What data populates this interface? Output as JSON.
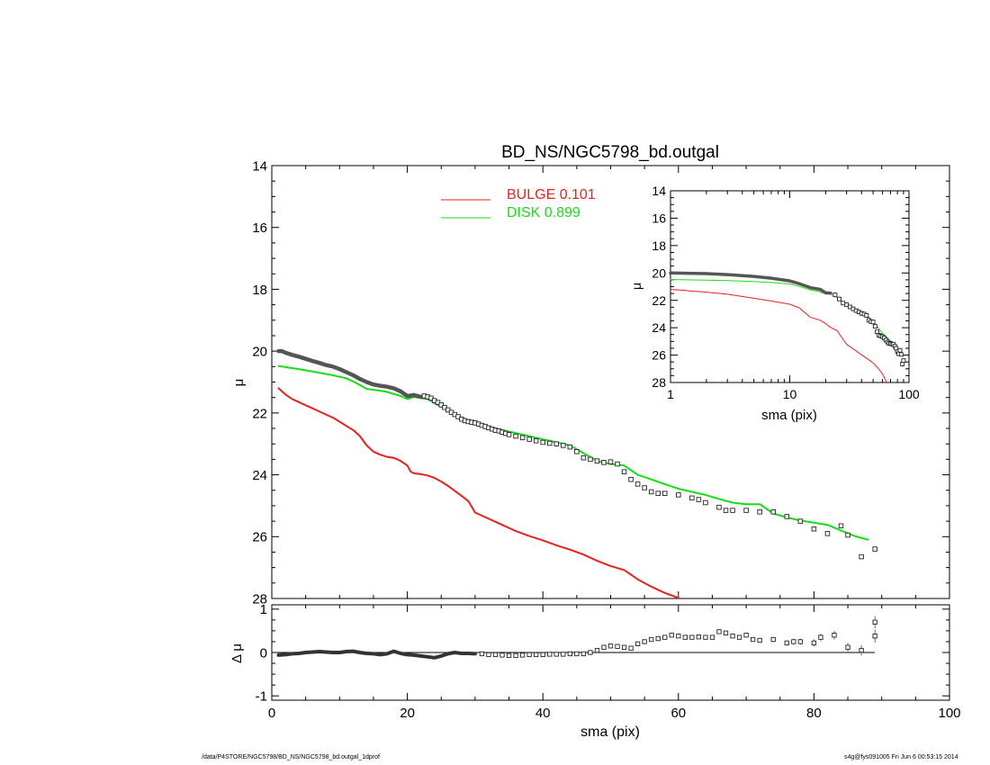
{
  "chart_data": [
    {
      "type": "scatter",
      "panel": "main",
      "title": "BD_NS/NGC5798_bd.outgal",
      "xlabel": "",
      "ylabel": "μ",
      "xlim": [
        0,
        100
      ],
      "ylim": [
        28,
        14
      ],
      "x_ticks": [
        0,
        20,
        40,
        60,
        80,
        100
      ],
      "y_ticks": [
        14,
        16,
        18,
        20,
        22,
        24,
        26,
        28
      ],
      "y_reversed": true,
      "legend_position": "top-center",
      "series": [
        {
          "name": "BULGE  0.101",
          "kind": "line",
          "color": "#e8211d",
          "x": [
            1,
            2,
            3,
            4,
            5,
            6,
            7,
            8,
            9,
            10,
            11,
            12,
            13,
            14,
            15,
            16,
            17,
            18,
            19,
            20,
            20.5,
            21,
            22,
            23,
            24,
            25,
            26,
            27,
            28,
            29,
            30,
            32,
            34,
            36,
            38,
            40,
            42,
            44,
            46,
            48,
            50,
            52,
            54,
            56,
            58,
            60
          ],
          "y": [
            21.2,
            21.4,
            21.55,
            21.65,
            21.75,
            21.85,
            21.95,
            22.05,
            22.15,
            22.28,
            22.42,
            22.55,
            22.75,
            23.05,
            23.25,
            23.35,
            23.42,
            23.45,
            23.55,
            23.7,
            23.9,
            23.95,
            23.98,
            24.02,
            24.1,
            24.22,
            24.36,
            24.52,
            24.68,
            24.85,
            25.22,
            25.42,
            25.62,
            25.82,
            25.98,
            26.12,
            26.28,
            26.42,
            26.58,
            26.78,
            26.95,
            27.08,
            27.38,
            27.62,
            27.82,
            27.98
          ]
        },
        {
          "name": "DISK  0.899",
          "kind": "line",
          "color": "#17dd17",
          "x": [
            1,
            3,
            5,
            7,
            9,
            11,
            12,
            13,
            14,
            15,
            16,
            17,
            18,
            19,
            20,
            21,
            22,
            23,
            24,
            25,
            26,
            27,
            28,
            30,
            32,
            34,
            36,
            38,
            40,
            42,
            44,
            46,
            48,
            50,
            52,
            54,
            56,
            58,
            60,
            62,
            64,
            66,
            68,
            70,
            72,
            74,
            76,
            78,
            80,
            82,
            84,
            86,
            88
          ],
          "y": [
            20.48,
            20.55,
            20.62,
            20.7,
            20.78,
            20.88,
            20.98,
            21.1,
            21.22,
            21.25,
            21.28,
            21.32,
            21.38,
            21.45,
            21.55,
            21.48,
            21.52,
            21.55,
            21.68,
            21.8,
            21.9,
            22.05,
            22.15,
            22.35,
            22.45,
            22.55,
            22.65,
            22.75,
            22.85,
            22.95,
            23.05,
            23.3,
            23.55,
            23.65,
            23.7,
            24.0,
            24.15,
            24.3,
            24.45,
            24.55,
            24.65,
            24.78,
            24.9,
            24.95,
            24.95,
            25.25,
            25.38,
            25.48,
            25.55,
            25.62,
            25.8,
            25.98,
            26.1
          ]
        },
        {
          "name": "",
          "kind": "thick_line",
          "color": "#555555",
          "x": [
            1,
            1.5,
            2,
            3,
            4,
            5,
            6,
            7,
            8,
            9,
            10,
            11,
            12,
            13,
            14,
            15,
            16,
            17,
            18,
            19,
            20,
            21,
            22
          ],
          "y": [
            20.0,
            20.0,
            20.05,
            20.12,
            20.18,
            20.25,
            20.32,
            20.38,
            20.45,
            20.5,
            20.58,
            20.68,
            20.78,
            20.9,
            21.0,
            21.08,
            21.12,
            21.15,
            21.2,
            21.3,
            21.45,
            21.42,
            21.48
          ]
        },
        {
          "name": "",
          "kind": "squares",
          "color": "#222222",
          "x": [
            22.5,
            23,
            23.5,
            24,
            24.5,
            25,
            25.5,
            26,
            26.5,
            27,
            27.5,
            28,
            28.5,
            29,
            29.5,
            30,
            30.5,
            31,
            31.5,
            32,
            32.5,
            33,
            33.5,
            34,
            34.5,
            35,
            36,
            37,
            38,
            39,
            40,
            41,
            42,
            43,
            44,
            45,
            46,
            47,
            48,
            49,
            50,
            51,
            52,
            53,
            54,
            55,
            56,
            57,
            58,
            60,
            62,
            63,
            64,
            66,
            67,
            68,
            70,
            72,
            74,
            76,
            78,
            80,
            82,
            84,
            85,
            87,
            89
          ],
          "y": [
            21.45,
            21.48,
            21.52,
            21.6,
            21.66,
            21.74,
            21.82,
            21.9,
            21.98,
            22.05,
            22.12,
            22.2,
            22.25,
            22.28,
            22.3,
            22.32,
            22.36,
            22.4,
            22.44,
            22.48,
            22.52,
            22.56,
            22.58,
            22.62,
            22.66,
            22.7,
            22.75,
            22.8,
            22.85,
            22.9,
            22.95,
            22.98,
            23.0,
            23.05,
            23.1,
            23.25,
            23.45,
            23.5,
            23.55,
            23.6,
            23.58,
            23.65,
            23.9,
            24.15,
            24.3,
            24.42,
            24.55,
            24.6,
            24.6,
            24.65,
            24.75,
            24.8,
            24.9,
            25.05,
            25.15,
            25.15,
            25.15,
            25.2,
            25.2,
            25.35,
            25.5,
            25.75,
            25.9,
            25.65,
            25.95,
            26.65,
            26.4
          ]
        }
      ]
    },
    {
      "type": "scatter",
      "panel": "residual",
      "xlabel": "sma (pix)",
      "ylabel": "Δ μ",
      "xlim": [
        0,
        100
      ],
      "ylim": [
        -1.1,
        1.1
      ],
      "x_ticks": [
        0,
        20,
        40,
        60,
        80,
        100
      ],
      "y_ticks": [
        1,
        0,
        -1
      ],
      "zero_line": {
        "x": [
          1,
          89
        ],
        "y": 0
      },
      "series": [
        {
          "name": "",
          "kind": "thick_line",
          "color": "#333333",
          "x": [
            1,
            2,
            3,
            4,
            5,
            6,
            7,
            8,
            9,
            10,
            11,
            12,
            13,
            14,
            15,
            16,
            17,
            18,
            19,
            20,
            21,
            22,
            23,
            24,
            25,
            26,
            27,
            28,
            29,
            30
          ],
          "y": [
            -0.06,
            -0.05,
            -0.03,
            -0.02,
            0.0,
            0.01,
            0.02,
            0.01,
            0.0,
            0.0,
            0.02,
            0.03,
            0.0,
            -0.02,
            -0.03,
            -0.05,
            -0.03,
            0.03,
            -0.02,
            -0.05,
            -0.06,
            -0.08,
            -0.1,
            -0.12,
            -0.08,
            -0.03,
            0.0,
            -0.02,
            -0.02,
            -0.03
          ]
        },
        {
          "name": "",
          "kind": "squares_with_errors",
          "color": "#222222",
          "x": [
            31,
            32,
            33,
            34,
            35,
            36,
            37,
            38,
            39,
            40,
            41,
            42,
            43,
            44,
            45,
            46,
            47,
            48,
            49,
            50,
            51,
            52,
            53,
            54,
            55,
            56,
            57,
            58,
            59,
            60,
            61,
            62,
            63,
            64,
            65,
            66,
            67,
            68,
            69,
            70,
            71,
            72,
            74,
            76,
            77,
            78,
            80,
            81,
            83,
            85,
            87,
            89
          ],
          "y": [
            -0.03,
            -0.05,
            -0.05,
            -0.06,
            -0.07,
            -0.07,
            -0.06,
            -0.05,
            -0.05,
            -0.05,
            -0.04,
            -0.04,
            -0.04,
            -0.03,
            -0.03,
            -0.03,
            0.0,
            0.05,
            0.12,
            0.15,
            0.14,
            0.12,
            0.1,
            0.2,
            0.25,
            0.3,
            0.32,
            0.35,
            0.4,
            0.38,
            0.35,
            0.35,
            0.36,
            0.35,
            0.35,
            0.48,
            0.45,
            0.38,
            0.35,
            0.4,
            0.3,
            0.28,
            0.3,
            0.22,
            0.25,
            0.25,
            0.22,
            0.35,
            0.4,
            0.12,
            0.05,
            0.7
          ],
          "err": [
            0.02,
            0.02,
            0.02,
            0.02,
            0.02,
            0.02,
            0.02,
            0.02,
            0.02,
            0.02,
            0.02,
            0.02,
            0.02,
            0.02,
            0.02,
            0.02,
            0.03,
            0.03,
            0.03,
            0.03,
            0.03,
            0.03,
            0.03,
            0.03,
            0.04,
            0.04,
            0.04,
            0.04,
            0.04,
            0.04,
            0.04,
            0.04,
            0.04,
            0.04,
            0.04,
            0.05,
            0.05,
            0.05,
            0.05,
            0.05,
            0.05,
            0.05,
            0.06,
            0.06,
            0.07,
            0.07,
            0.08,
            0.09,
            0.1,
            0.1,
            0.12,
            0.14
          ]
        },
        {
          "name": "",
          "kind": "squares_with_errors",
          "color": "#222222",
          "x": [
            89
          ],
          "y": [
            0.38
          ],
          "err": [
            0.15
          ]
        }
      ]
    },
    {
      "type": "scatter",
      "panel": "inset",
      "xlabel": "sma (pix)",
      "ylabel": "μ",
      "x_scale": "log",
      "xlim": [
        1,
        100
      ],
      "ylim": [
        28,
        14
      ],
      "x_ticks": [
        1,
        10,
        100
      ],
      "y_ticks": [
        14,
        16,
        18,
        20,
        22,
        24,
        26,
        28
      ],
      "y_reversed": true,
      "series": [
        {
          "name": "",
          "kind": "line",
          "color": "#e8211d",
          "x": [
            1,
            2,
            3,
            5,
            7,
            10,
            12,
            15,
            18,
            20,
            22,
            25,
            30,
            35,
            40,
            45,
            50,
            55,
            60,
            65
          ],
          "y": [
            21.2,
            21.4,
            21.55,
            21.85,
            22.05,
            22.28,
            22.55,
            23.25,
            23.45,
            23.7,
            23.98,
            24.22,
            25.22,
            25.62,
            25.98,
            26.28,
            26.58,
            26.95,
            27.38,
            27.98
          ]
        },
        {
          "name": "",
          "kind": "line",
          "color": "#17dd17",
          "x": [
            1,
            2,
            3,
            5,
            7,
            10,
            12,
            15,
            18,
            20,
            22,
            25,
            30,
            35,
            40,
            45,
            50,
            55,
            60,
            65,
            70,
            75,
            80,
            85,
            90
          ],
          "y": [
            20.48,
            20.52,
            20.55,
            20.62,
            20.7,
            20.8,
            20.98,
            21.25,
            21.38,
            21.55,
            21.52,
            21.8,
            22.35,
            22.6,
            22.85,
            23.1,
            23.6,
            24.0,
            24.4,
            24.7,
            24.95,
            25.3,
            25.55,
            25.8,
            26.05
          ]
        },
        {
          "name": "",
          "kind": "thick_line",
          "color": "#555555",
          "x": [
            1,
            2,
            3,
            5,
            7,
            10,
            12,
            15,
            18,
            20,
            22
          ],
          "y": [
            20.0,
            20.05,
            20.12,
            20.25,
            20.38,
            20.58,
            20.78,
            21.08,
            21.2,
            21.45,
            21.48
          ]
        },
        {
          "name": "",
          "kind": "squares",
          "color": "#222222",
          "x": [
            24,
            26,
            28,
            30,
            32,
            34,
            36,
            38,
            40,
            42,
            44,
            46,
            48,
            50,
            52,
            54,
            56,
            58,
            60,
            62,
            64,
            66,
            68,
            70,
            72,
            74,
            76,
            78,
            80,
            82,
            84,
            86,
            88,
            90
          ],
          "y": [
            21.6,
            21.9,
            22.2,
            22.32,
            22.48,
            22.62,
            22.75,
            22.85,
            22.95,
            23.0,
            23.1,
            23.45,
            23.55,
            23.58,
            23.9,
            24.3,
            24.55,
            24.6,
            24.65,
            24.75,
            24.9,
            25.05,
            25.15,
            25.15,
            25.2,
            25.2,
            25.35,
            25.5,
            25.75,
            25.9,
            25.65,
            25.95,
            26.65,
            26.4
          ]
        }
      ]
    }
  ],
  "footer": {
    "left": "/data/P4STORE/NGC5798/BD_NS/NGC5798_bd.outgal_1dprof",
    "right": "s4g@fys091005  Fri Jun  6 00:53:15 2014"
  }
}
